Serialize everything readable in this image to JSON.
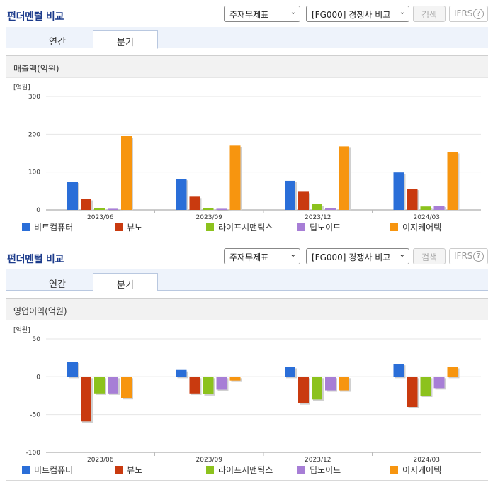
{
  "header": {
    "title": "펀더멘털 비교",
    "select_report": "주재무제표",
    "select_compare": "[FG000] 경쟁사 비교",
    "search_button": "검색",
    "ifrs_label": "IFRS",
    "help_icon": "?"
  },
  "tabs": [
    {
      "label": "연간"
    },
    {
      "label": "분기"
    }
  ],
  "colors": {
    "비트컴퓨터": "#2a6ed8",
    "뷰노": "#c93a0f",
    "라이프시맨틱스": "#8cc21d",
    "딥노이드": "#a77ed6",
    "이지케어텍": "#f7950f"
  },
  "chart_data": [
    {
      "type": "bar",
      "title": "매출액(억원)",
      "unit_label": "[억원]",
      "categories": [
        "2023/06",
        "2023/09",
        "2023/12",
        "2024/03"
      ],
      "ylim": [
        0,
        300
      ],
      "yticks": [
        0,
        100,
        200,
        300
      ],
      "legend_position": "bottom",
      "series": [
        {
          "name": "비트컴퓨터",
          "values": [
            75,
            82,
            77,
            99
          ]
        },
        {
          "name": "뷰노",
          "values": [
            29,
            35,
            48,
            56
          ]
        },
        {
          "name": "라이프시맨틱스",
          "values": [
            5,
            4,
            15,
            9
          ]
        },
        {
          "name": "딥노이드",
          "values": [
            3,
            3,
            5,
            11
          ]
        },
        {
          "name": "이지케어텍",
          "values": [
            195,
            170,
            168,
            153
          ]
        }
      ]
    },
    {
      "type": "bar",
      "title": "영업이익(억원)",
      "unit_label": "[억원]",
      "categories": [
        "2023/06",
        "2023/09",
        "2023/12",
        "2024/03"
      ],
      "ylim": [
        -100,
        50
      ],
      "yticks": [
        -100,
        -50,
        0,
        50
      ],
      "legend_position": "bottom",
      "series": [
        {
          "name": "비트컴퓨터",
          "values": [
            20,
            9,
            13,
            17
          ]
        },
        {
          "name": "뷰노",
          "values": [
            -59,
            -22,
            -35,
            -40
          ]
        },
        {
          "name": "라이프시맨틱스",
          "values": [
            -22,
            -23,
            -30,
            -25
          ]
        },
        {
          "name": "딥노이드",
          "values": [
            -22,
            -17,
            -18,
            -15
          ]
        },
        {
          "name": "이지케어텍",
          "values": [
            -28,
            -5,
            -18,
            13
          ]
        }
      ]
    }
  ]
}
